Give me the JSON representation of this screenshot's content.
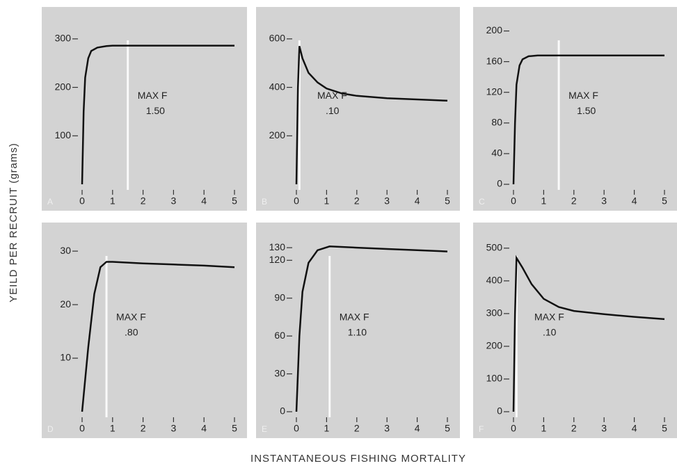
{
  "ylabel": "YEILD PER RECRUIT (grams)",
  "xlabel": "INSTANTANEOUS FISHING MORTALITY",
  "chart_data": [
    {
      "type": "line",
      "panel": "A",
      "x": [
        0,
        0.05,
        0.1,
        0.2,
        0.3,
        0.5,
        0.8,
        1.0,
        1.5,
        2,
        3,
        4,
        5
      ],
      "values": [
        0,
        150,
        220,
        260,
        275,
        282,
        285,
        286,
        286,
        286,
        286,
        286,
        286
      ],
      "xlim": [
        0,
        5
      ],
      "xticks": [
        0,
        1,
        2,
        3,
        4,
        5
      ],
      "ylim": [
        0,
        340
      ],
      "yticks": [
        100,
        200,
        300
      ],
      "annotation": "MAX F",
      "max_f": {
        "value": 1.5,
        "label": "1.50"
      },
      "color": "#111"
    },
    {
      "type": "line",
      "panel": "B",
      "x": [
        0,
        0.05,
        0.1,
        0.2,
        0.4,
        0.7,
        1,
        1.5,
        2,
        3,
        4,
        5
      ],
      "values": [
        0,
        400,
        570,
        520,
        460,
        420,
        395,
        375,
        365,
        355,
        350,
        345
      ],
      "xlim": [
        0,
        5
      ],
      "xticks": [
        0,
        1,
        2,
        3,
        4,
        5
      ],
      "ylim": [
        0,
        680
      ],
      "yticks": [
        200,
        400,
        600
      ],
      "annotation": "MAX F",
      "max_f": {
        "value": 0.1,
        "label": ".10"
      },
      "color": "#111"
    },
    {
      "type": "line",
      "panel": "C",
      "x": [
        0,
        0.05,
        0.1,
        0.2,
        0.3,
        0.5,
        0.8,
        1,
        1.5,
        2,
        3,
        4,
        5
      ],
      "values": [
        0,
        80,
        130,
        155,
        163,
        167,
        168,
        168,
        168,
        168,
        168,
        168,
        168
      ],
      "xlim": [
        0,
        5
      ],
      "xticks": [
        0,
        1,
        2,
        3,
        4,
        5
      ],
      "ylim": [
        0,
        215
      ],
      "yticks": [
        0,
        40,
        80,
        120,
        160,
        200
      ],
      "annotation": "MAX F",
      "max_f": {
        "value": 1.5,
        "label": "1.50"
      },
      "color": "#111"
    },
    {
      "type": "line",
      "panel": "D",
      "x": [
        0,
        0.2,
        0.4,
        0.6,
        0.8,
        1,
        2,
        3,
        4,
        5
      ],
      "values": [
        0,
        12,
        22,
        27,
        28,
        28,
        27.7,
        27.5,
        27.3,
        27
      ],
      "xlim": [
        0,
        5
      ],
      "xticks": [
        0,
        1,
        2,
        3,
        4,
        5
      ],
      "ylim": [
        0,
        33
      ],
      "yticks": [
        10,
        20,
        30
      ],
      "annotation": "MAX F",
      "max_f": {
        "value": 0.8,
        "label": ".80"
      },
      "color": "#111"
    },
    {
      "type": "line",
      "panel": "E",
      "x": [
        0,
        0.1,
        0.2,
        0.4,
        0.7,
        1.1,
        2,
        3,
        4,
        5
      ],
      "values": [
        0,
        60,
        95,
        118,
        128,
        131,
        130,
        129,
        128,
        127
      ],
      "xlim": [
        0,
        5
      ],
      "xticks": [
        0,
        1,
        2,
        3,
        4,
        5
      ],
      "ylim": [
        0,
        140
      ],
      "yticks": [
        0,
        30,
        60,
        90,
        120,
        130
      ],
      "annotation": "MAX F",
      "max_f": {
        "value": 1.1,
        "label": "1.10"
      },
      "color": "#111"
    },
    {
      "type": "line",
      "panel": "F",
      "x": [
        0,
        0.05,
        0.1,
        0.3,
        0.6,
        1,
        1.5,
        2,
        3,
        4,
        5
      ],
      "values": [
        0,
        300,
        470,
        440,
        390,
        345,
        320,
        308,
        298,
        290,
        283
      ],
      "xlim": [
        0,
        5
      ],
      "xticks": [
        0,
        1,
        2,
        3,
        4,
        5
      ],
      "ylim": [
        0,
        540
      ],
      "yticks": [
        0,
        100,
        200,
        300,
        400,
        500
      ],
      "annotation": "MAX F",
      "max_f": {
        "value": 0.1,
        "label": ".10"
      },
      "color": "#111"
    }
  ]
}
